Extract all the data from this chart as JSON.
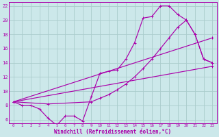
{
  "bg_color": "#cce8ea",
  "line_color": "#aa00aa",
  "grid_color": "#aacccc",
  "xlabel": "Windchill (Refroidissement éolien,°C)",
  "ylim": [
    5.5,
    22.5
  ],
  "xlim": [
    -0.5,
    23.5
  ],
  "yticks": [
    6,
    8,
    10,
    12,
    14,
    16,
    18,
    20,
    22
  ],
  "xticks": [
    0,
    1,
    2,
    3,
    4,
    5,
    6,
    7,
    8,
    9,
    10,
    11,
    12,
    13,
    14,
    15,
    16,
    17,
    18,
    19,
    20,
    21,
    22,
    23
  ],
  "line1_x": [
    0,
    1,
    2,
    3,
    4,
    5,
    6,
    7,
    8,
    9,
    10,
    11,
    12,
    13,
    14,
    15,
    16,
    17,
    18,
    19,
    20,
    21,
    22,
    23
  ],
  "line1_y": [
    8.5,
    8.0,
    8.0,
    7.5,
    6.2,
    5.2,
    6.5,
    6.5,
    5.8,
    9.2,
    12.5,
    12.8,
    13.0,
    14.5,
    16.8,
    20.3,
    20.5,
    22.0,
    22.0,
    20.8,
    20.0,
    18.0,
    14.5,
    14.0
  ],
  "line2_x": [
    0,
    23
  ],
  "line2_y": [
    8.5,
    13.5
  ],
  "line3_x": [
    0,
    4,
    9,
    10,
    11,
    12,
    13,
    14,
    15,
    16,
    17,
    18,
    19,
    20,
    21,
    22,
    23
  ],
  "line3_y": [
    8.5,
    8.2,
    8.5,
    9.0,
    9.5,
    10.2,
    11.0,
    12.0,
    13.2,
    14.5,
    16.0,
    17.5,
    19.0,
    20.0,
    18.0,
    14.5,
    14.0
  ],
  "line4_x": [
    0,
    23
  ],
  "line4_y": [
    8.5,
    17.5
  ]
}
